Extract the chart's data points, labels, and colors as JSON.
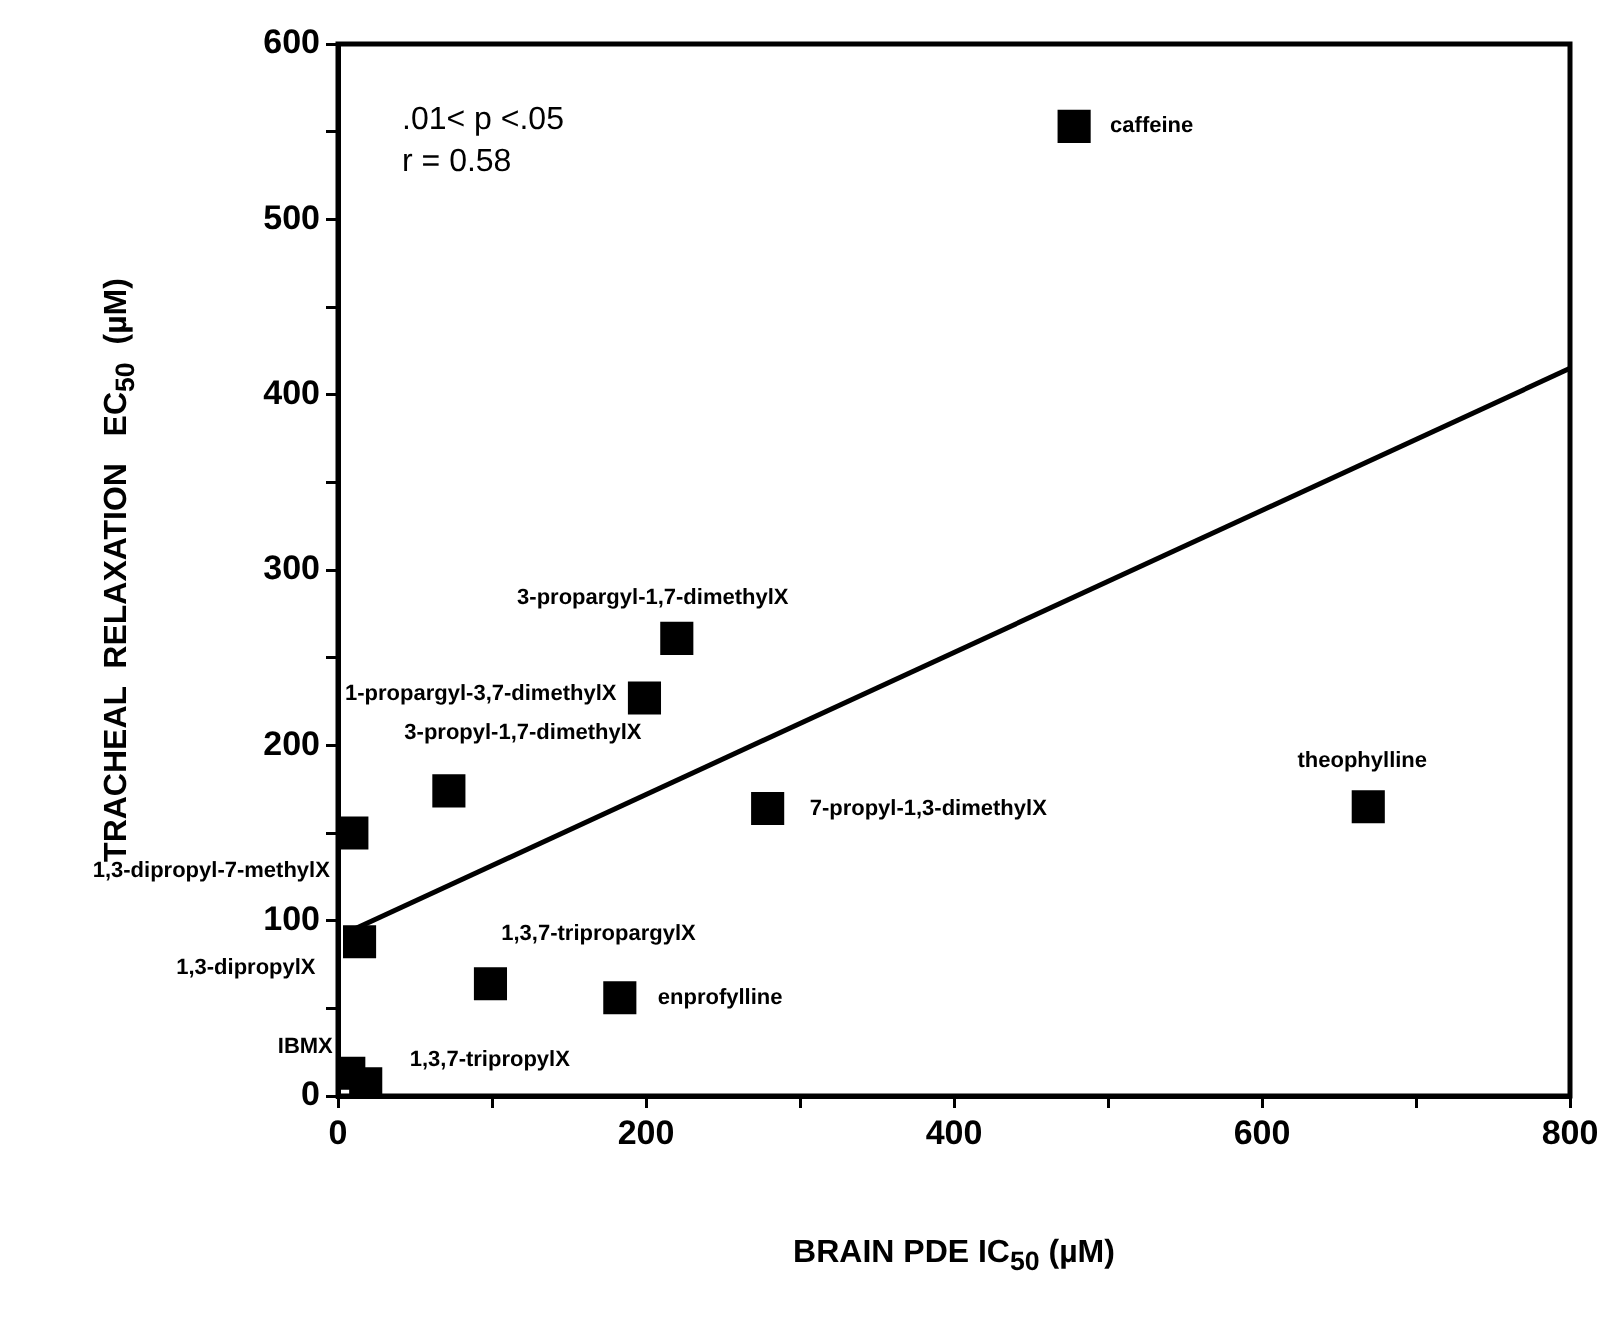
{
  "chart_data": {
    "type": "scatter",
    "xlabel": "BRAIN PDE IC$_{50}$ (µM)",
    "ylabel": "TRACHEAL  RELAXATION   EC$_{50}$  (µM)",
    "series": [
      {
        "color": "#000000",
        "marker": "square",
        "x": [
          478,
          220,
          199,
          72,
          9,
          279,
          669,
          14,
          99,
          183,
          7,
          18
        ],
        "values": [
          553,
          261,
          227,
          174,
          150,
          164,
          165,
          88,
          64,
          56,
          13,
          7
        ]
      },
      {
        "type": "line",
        "color": "#000000",
        "marker": "none",
        "line_style": "solid",
        "x": [
          10,
          800
        ],
        "values": [
          95,
          415
        ]
      }
    ],
    "xlim": [
      0,
      800
    ],
    "xticks": [
      0,
      {
        "value": 100,
        "label": null
      },
      200,
      {
        "value": 300,
        "label": null
      },
      400,
      {
        "value": 500,
        "label": null
      },
      600,
      {
        "value": 700,
        "label": null
      },
      800
    ],
    "ylim": [
      0,
      600
    ],
    "yticks": [
      0,
      {
        "value": 50,
        "label": null
      },
      100,
      {
        "value": 150,
        "label": null
      },
      200,
      {
        "value": 250,
        "label": null
      },
      300,
      {
        "value": 350,
        "label": null
      },
      400,
      {
        "value": 450,
        "label": null
      },
      500,
      {
        "value": 550,
        "label": null
      },
      600
    ],
    "grid": false,
    "legend": false,
    "annotations": [
      ".01< p <.05",
      "r = 0.58",
      {
        "text": "caffeine",
        "x": 478,
        "y": 553
      },
      {
        "text": "3-propargyl-1,7-dimethylX",
        "x": 220,
        "y": 261
      },
      {
        "text": "1-propargyl-3,7-dimethylX",
        "x": 199,
        "y": 227
      },
      {
        "text": "3-propyl-1,7-dimethylX",
        "x": 72,
        "y": 174
      },
      {
        "text": "1,3-dipropyl-7-methylX",
        "x": 9,
        "y": 150
      },
      {
        "text": "7-propyl-1,3-dimethylX",
        "x": 279,
        "y": 164
      },
      {
        "text": "theophylline",
        "x": 669,
        "y": 165
      },
      {
        "text": "1,3-dipropylX",
        "x": 14,
        "y": 88
      },
      {
        "text": "1,3,7-tripropargylX",
        "x": 99,
        "y": 64
      },
      {
        "text": "enprofylline",
        "x": 183,
        "y": 56
      },
      {
        "text": "IBMX",
        "x": 7,
        "y": 13
      },
      {
        "text": "1,3,7-tripropylX",
        "x": 18,
        "y": 7
      }
    ]
  }
}
